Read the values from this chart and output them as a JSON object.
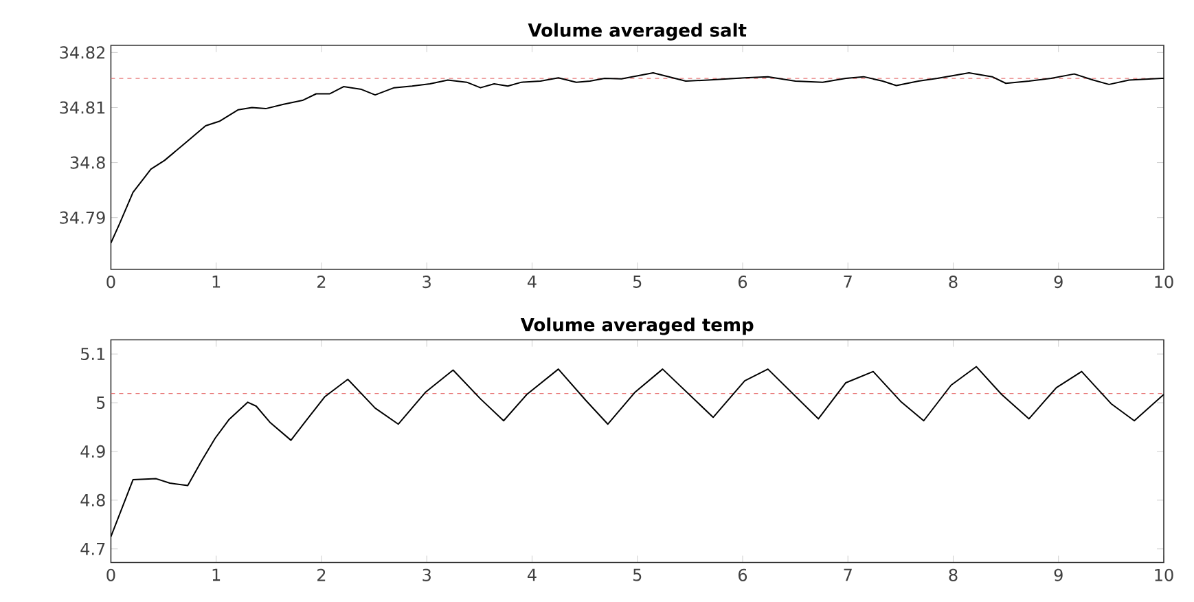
{
  "chart_data": [
    {
      "type": "line",
      "title": "Volume averaged salt",
      "xlim": [
        0,
        10
      ],
      "ylim": [
        34.7806,
        34.8213
      ],
      "xticks": [
        0,
        1,
        2,
        3,
        4,
        5,
        6,
        7,
        8,
        9,
        10
      ],
      "yticks": [
        34.79,
        34.8,
        34.81,
        34.82
      ],
      "series": [
        {
          "color": "#000000",
          "x": [
            0,
            0.08,
            0.21,
            0.38,
            0.51,
            0.69,
            0.9,
            1.03,
            1.21,
            1.34,
            1.47,
            1.64,
            1.82,
            1.95,
            2.08,
            2.21,
            2.38,
            2.51,
            2.69,
            2.86,
            3.03,
            3.2,
            3.38,
            3.51,
            3.64,
            3.77,
            3.9,
            4.08,
            4.25,
            4.42,
            4.55,
            4.69,
            4.85,
            5.15,
            5.46,
            5.67,
            6.02,
            6.24,
            6.5,
            6.76,
            6.98,
            7.15,
            7.33,
            7.46,
            7.67,
            7.85,
            8.15,
            8.37,
            8.5,
            8.72,
            8.93,
            9.15,
            9.33,
            9.48,
            9.67,
            9.98,
            10
          ],
          "values": [
            34.7854,
            34.7888,
            34.7946,
            34.7988,
            34.8004,
            34.8033,
            34.8067,
            34.8075,
            34.8096,
            34.81,
            34.8098,
            34.8106,
            34.8113,
            34.8125,
            34.8125,
            34.8138,
            34.8133,
            34.8123,
            34.8136,
            34.8139,
            34.8143,
            34.815,
            34.8146,
            34.8136,
            34.8143,
            34.8139,
            34.8146,
            34.8148,
            34.8154,
            34.8146,
            34.8148,
            34.8153,
            34.8152,
            34.8163,
            34.8148,
            34.815,
            34.8154,
            34.8156,
            34.8148,
            34.8146,
            34.8153,
            34.8156,
            34.8148,
            34.814,
            34.8148,
            34.8153,
            34.8163,
            34.8156,
            34.8144,
            34.8148,
            34.8153,
            34.8161,
            34.815,
            34.8142,
            34.815,
            34.8153,
            34.8153
          ]
        }
      ],
      "ref_lines": [
        {
          "axis": "y",
          "value": 34.8153,
          "color": "#e87878",
          "line_style": "dashed"
        }
      ]
    },
    {
      "type": "line",
      "title": "Volume averaged temp",
      "xlim": [
        0,
        10
      ],
      "ylim": [
        4.672,
        5.129
      ],
      "xticks": [
        0,
        1,
        2,
        3,
        4,
        5,
        6,
        7,
        8,
        9,
        10
      ],
      "yticks": [
        4.7,
        4.8,
        4.9,
        5,
        5.1
      ],
      "series": [
        {
          "color": "#000000",
          "x": [
            0,
            0.21,
            0.43,
            0.56,
            0.73,
            0.86,
            0.99,
            1.12,
            1.3,
            1.38,
            1.51,
            1.71,
            1.86,
            2.03,
            2.25,
            2.51,
            2.73,
            2.99,
            3.25,
            3.51,
            3.73,
            3.95,
            4.25,
            4.51,
            4.72,
            4.98,
            5.24,
            5.72,
            6.02,
            6.24,
            6.72,
            6.98,
            7.24,
            7.5,
            7.72,
            7.98,
            8.22,
            8.46,
            8.72,
            8.98,
            9.22,
            9.5,
            9.72,
            10
          ],
          "values": [
            4.725,
            4.842,
            4.844,
            4.835,
            4.83,
            4.88,
            4.927,
            4.965,
            5.001,
            4.993,
            4.96,
            4.923,
            4.965,
            5.012,
            5.048,
            4.989,
            4.956,
            5.022,
            5.067,
            5.008,
            4.963,
            5.017,
            5.069,
            5.005,
            4.956,
            5.022,
            5.069,
            4.97,
            5.045,
            5.069,
            4.967,
            5.041,
            5.064,
            5.003,
            4.963,
            5.036,
            5.074,
            5.017,
            4.967,
            5.031,
            5.064,
            4.998,
            4.963,
            5.017
          ]
        }
      ],
      "ref_lines": [
        {
          "axis": "y",
          "value": 5.019,
          "color": "#e87878",
          "line_style": "dashed"
        }
      ]
    }
  ]
}
